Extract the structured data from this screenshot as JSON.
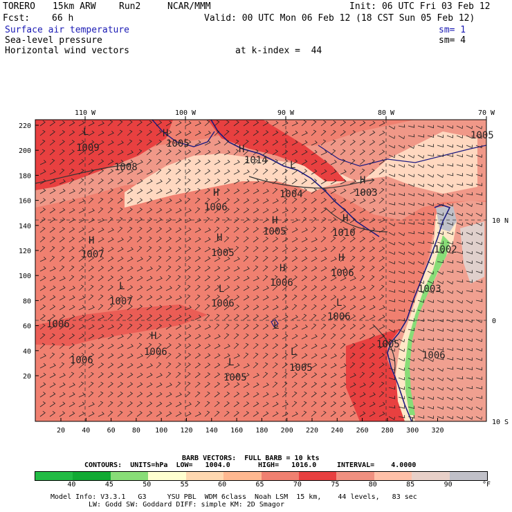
{
  "header": {
    "model": "TORERO",
    "resolution": "15km ARW",
    "run": "Run2",
    "institute": "NCAR/MMM",
    "init": "Init: 06 UTC Fri 03 Feb 12",
    "fcst_label": "Fcst:",
    "fcst_hours": "66 h",
    "valid": "Valid: 00 UTC Mon 06 Feb 12 (18 CST Sun 05 Feb 12)"
  },
  "fields": {
    "f1": "Surface air temperature",
    "f1_sm": "sm= 1",
    "f2": "Sea-level pressure",
    "f2_sm": "sm= 4",
    "f3": "Horizontal wind vectors",
    "k_index": "at k-index =  44"
  },
  "map": {
    "lon_labels": [
      "110 W",
      "100 W",
      "90 W",
      "80 W",
      "70 W"
    ],
    "lat_labels": [
      "10 N",
      "0",
      "10 S"
    ],
    "x_ticks": [
      "20",
      "40",
      "60",
      "80",
      "100",
      "120",
      "140",
      "160",
      "180",
      "200",
      "220",
      "240",
      "260",
      "280",
      "300",
      "320"
    ],
    "y_ticks": [
      "220",
      "200",
      "180",
      "160",
      "140",
      "120",
      "100",
      "80",
      "60",
      "40",
      "20"
    ],
    "pressure_labels": [
      {
        "text": "1009"
      },
      {
        "text": "1005"
      },
      {
        "text": "1008"
      },
      {
        "text": "1014"
      },
      {
        "text": "1004"
      },
      {
        "text": "1003"
      },
      {
        "text": "1006"
      },
      {
        "text": "1005"
      },
      {
        "text": "1010"
      },
      {
        "text": "1007"
      },
      {
        "text": "1005"
      },
      {
        "text": "1002"
      },
      {
        "text": "1006"
      },
      {
        "text": "1006"
      },
      {
        "text": "1003"
      },
      {
        "text": "1007"
      },
      {
        "text": "1006"
      },
      {
        "text": "1006"
      },
      {
        "text": "1006"
      },
      {
        "text": "1006"
      },
      {
        "text": "1006"
      },
      {
        "text": "1005"
      },
      {
        "text": "1005"
      },
      {
        "text": "1005"
      },
      {
        "text": "1006"
      },
      {
        "text": "1005"
      }
    ],
    "hl_markers": [
      "L",
      "H",
      "H",
      "H",
      "L",
      "H",
      "H",
      "H",
      "H",
      "H",
      "H",
      "H",
      "L",
      "L",
      "L",
      "H",
      "L",
      "L",
      "L"
    ]
  },
  "barb_info": {
    "title": "BARB VECTORS:  FULL BARB = 10 kts",
    "contours": "CONTOURS:  UNITS=hPa  LOW=   1004.0",
    "high": "HIGH=   1016.0",
    "interval": "INTERVAL=    4.0000"
  },
  "colorbar": {
    "colors": [
      "#22bb44",
      "#11aa33",
      "#88dd77",
      "#ffffd0",
      "#ffd8b0",
      "#ffb890",
      "#f08070",
      "#e84040",
      "#f09080",
      "#ffc0a8",
      "#e8d0c8",
      "#c0c0c8"
    ],
    "labels": [
      "40",
      "45",
      "50",
      "55",
      "60",
      "65",
      "70",
      "75",
      "80",
      "85",
      "90"
    ],
    "unit": "°F"
  },
  "footer": {
    "line1": "Model Info: V3.3.1   G3     YSU PBL  WDM 6class  Noah LSM  15 km,    44 levels,   83 sec",
    "line2": "LW: Godd SW: Goddard DIFF: simple KM: 2D Smagor"
  }
}
